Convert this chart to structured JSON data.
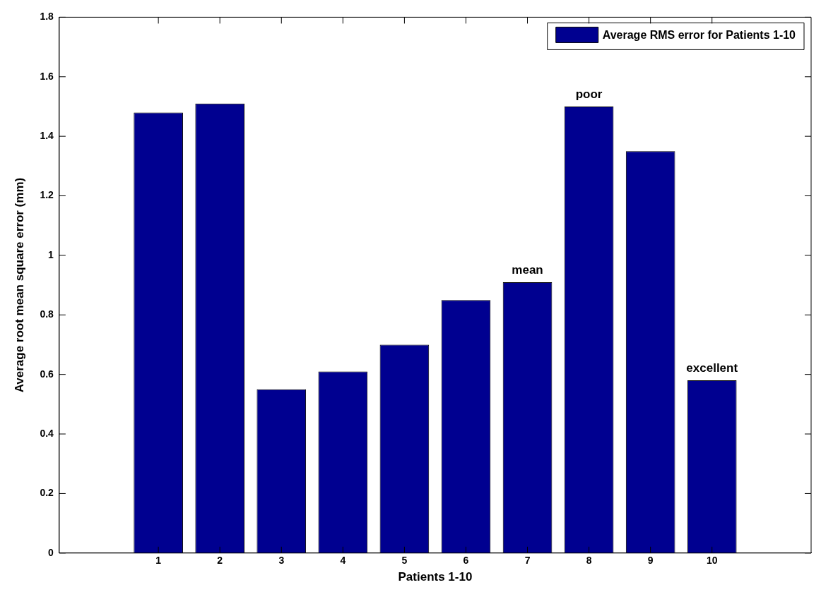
{
  "chart_data": {
    "type": "bar",
    "xlabel": "Patients 1-10",
    "ylabel": "Average root mean square error (mm)",
    "categories": [
      "1",
      "2",
      "3",
      "4",
      "5",
      "6",
      "7",
      "8",
      "9",
      "10"
    ],
    "series": [
      {
        "name": "Average RMS error for Patients 1-10",
        "color": "#000090",
        "values": [
          1.48,
          1.51,
          0.55,
          0.61,
          0.7,
          0.85,
          0.91,
          1.5,
          1.35,
          0.58
        ]
      }
    ],
    "ylim": [
      0,
      1.8
    ],
    "yticks": [
      0,
      0.2,
      0.4,
      0.6,
      0.8,
      1,
      1.2,
      1.4,
      1.6,
      1.8
    ],
    "annotations": [
      {
        "text": "mean",
        "x": "7",
        "y": 0.91
      },
      {
        "text": "poor",
        "x": "8",
        "y": 1.5
      },
      {
        "text": "excellent",
        "x": "10",
        "y": 0.58
      }
    ],
    "grid": false,
    "legend": "top right"
  }
}
